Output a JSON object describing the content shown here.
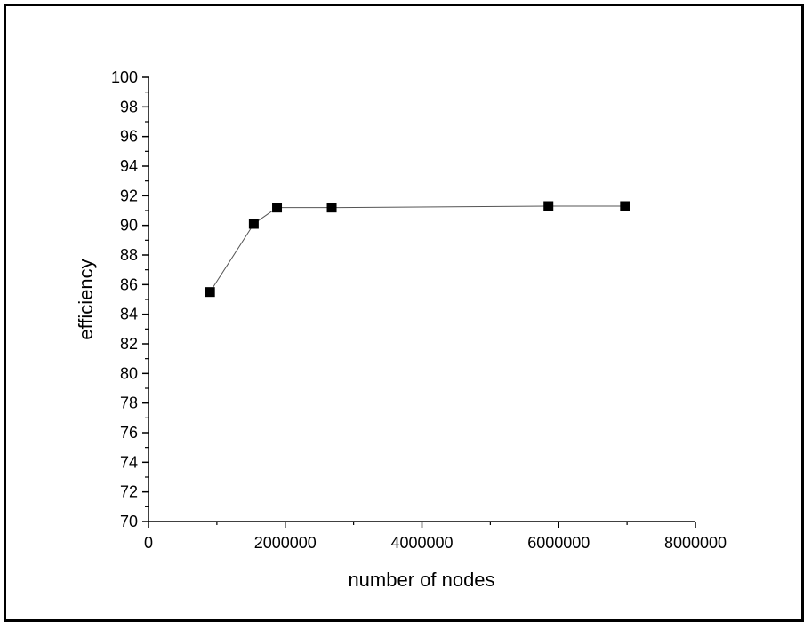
{
  "chart_data": {
    "type": "line",
    "title": "",
    "xlabel": "number of nodes",
    "ylabel": "efficiency",
    "xlim": [
      0,
      8000000
    ],
    "ylim": [
      70,
      100
    ],
    "x_ticks": [
      0,
      2000000,
      4000000,
      6000000,
      8000000
    ],
    "x_tick_labels": [
      "0",
      "2000000",
      "4000000",
      "6000000",
      "8000000"
    ],
    "y_ticks": [
      70,
      72,
      74,
      76,
      78,
      80,
      82,
      84,
      86,
      88,
      90,
      92,
      94,
      96,
      98,
      100
    ],
    "y_tick_labels": [
      "70",
      "72",
      "74",
      "76",
      "78",
      "80",
      "82",
      "84",
      "86",
      "88",
      "90",
      "92",
      "94",
      "96",
      "98",
      "100"
    ],
    "grid": false,
    "legend": "none",
    "marker": "square",
    "colors": {
      "line": "#555555",
      "marker": "#000000",
      "axis": "#000000"
    },
    "series": [
      {
        "x": [
          900000,
          1540000,
          1880000,
          2680000,
          5850000,
          6970000
        ],
        "y": [
          85.5,
          90.1,
          91.2,
          91.2,
          91.3,
          91.3
        ]
      }
    ]
  }
}
